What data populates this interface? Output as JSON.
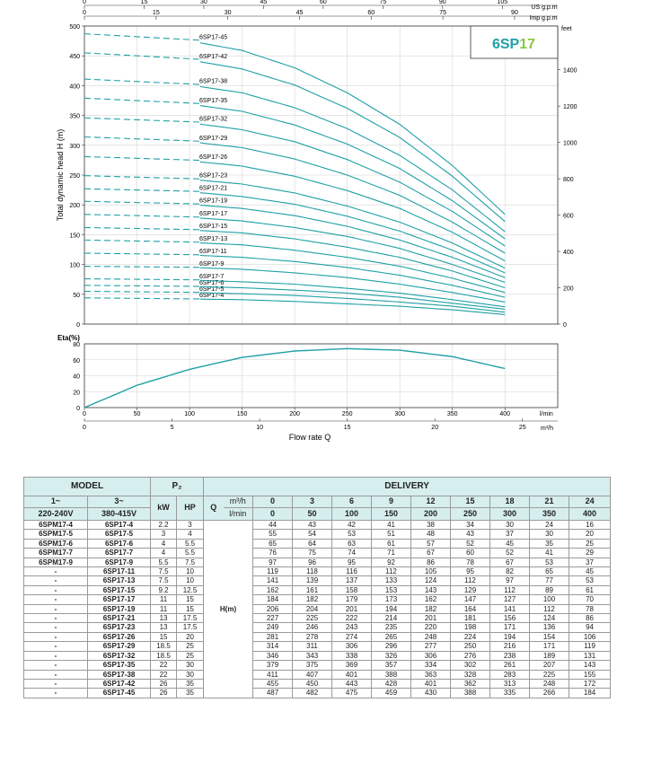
{
  "colors": {
    "curve": "#1fa0a6",
    "badge_blue": "#1fa0a6",
    "badge_green": "#8dc63f",
    "header_bg": "#d7eeee"
  },
  "badge": {
    "prefix": "6SP",
    "suffix": "17"
  },
  "axis_labels": {
    "usgpm": "US g.p.m",
    "impgpm": "Imp g.p.m",
    "feet": "feet",
    "ylabel": "Total dynamic head H (m)",
    "eta": "Eta(%)",
    "lmin": "l/min",
    "m3h": "m³/h",
    "flow": "Flow rate  Q"
  },
  "chart_data": [
    {
      "type": "line",
      "ylabel": "Total dynamic head H (m)",
      "xlabel": "Flow rate Q",
      "x_lmin": [
        0,
        50,
        100,
        150,
        200,
        250,
        300,
        350,
        400
      ],
      "xlim": [
        0,
        450
      ],
      "ylim": [
        0,
        500
      ],
      "yticks": [
        0,
        50,
        100,
        150,
        200,
        250,
        300,
        350,
        400,
        450,
        500
      ],
      "xticks_lmin": [
        0,
        50,
        100,
        150,
        200,
        250,
        300,
        350,
        400
      ],
      "xticks_m3h": [
        0,
        5,
        10,
        15,
        20,
        25
      ],
      "xticks_usgpm": [
        0,
        15,
        30,
        45,
        60,
        75,
        90,
        105
      ],
      "xticks_impgpm": [
        0,
        15,
        30,
        45,
        60,
        75,
        90
      ],
      "yticks_feet": [
        0,
        200,
        400,
        600,
        800,
        1000,
        1200,
        1400
      ],
      "series": [
        {
          "name": "6SP17-4",
          "values": [
            44,
            43,
            42,
            41,
            38,
            34,
            30,
            24,
            16
          ]
        },
        {
          "name": "6SP17-5",
          "values": [
            55,
            54,
            53,
            51,
            48,
            43,
            37,
            30,
            20
          ]
        },
        {
          "name": "6SP17-6",
          "values": [
            65,
            64,
            63,
            61,
            57,
            52,
            45,
            35,
            25
          ]
        },
        {
          "name": "6SP17-7",
          "values": [
            76,
            75,
            74,
            71,
            67,
            60,
            52,
            41,
            29
          ]
        },
        {
          "name": "6SP17-9",
          "values": [
            97,
            96,
            95,
            92,
            86,
            78,
            67,
            53,
            37
          ]
        },
        {
          "name": "6SP17-11",
          "values": [
            119,
            118,
            116,
            112,
            105,
            95,
            82,
            65,
            45
          ]
        },
        {
          "name": "6SP17-13",
          "values": [
            141,
            139,
            137,
            133,
            124,
            112,
            97,
            77,
            53
          ]
        },
        {
          "name": "6SP17-15",
          "values": [
            162,
            161,
            158,
            153,
            143,
            129,
            112,
            89,
            61
          ]
        },
        {
          "name": "6SP17-17",
          "values": [
            184,
            182,
            179,
            173,
            162,
            147,
            127,
            100,
            70
          ]
        },
        {
          "name": "6SP17-19",
          "values": [
            206,
            204,
            201,
            194,
            182,
            164,
            141,
            112,
            78
          ]
        },
        {
          "name": "6SP17-21",
          "values": [
            227,
            225,
            222,
            214,
            201,
            181,
            156,
            124,
            86
          ]
        },
        {
          "name": "6SP17-23",
          "values": [
            249,
            246,
            243,
            235,
            220,
            198,
            171,
            136,
            94
          ]
        },
        {
          "name": "6SP17-26",
          "values": [
            281,
            278,
            274,
            265,
            248,
            224,
            194,
            154,
            106
          ]
        },
        {
          "name": "6SP17-29",
          "values": [
            314,
            311,
            306,
            296,
            277,
            250,
            216,
            171,
            119
          ]
        },
        {
          "name": "6SP17-32",
          "values": [
            346,
            343,
            338,
            326,
            306,
            276,
            238,
            189,
            131
          ]
        },
        {
          "name": "6SP17-35",
          "values": [
            379,
            375,
            369,
            357,
            334,
            302,
            261,
            207,
            143
          ]
        },
        {
          "name": "6SP17-38",
          "values": [
            411,
            407,
            401,
            388,
            363,
            328,
            283,
            225,
            155
          ]
        },
        {
          "name": "6SP17-42",
          "values": [
            455,
            450,
            443,
            428,
            401,
            362,
            313,
            248,
            172
          ]
        },
        {
          "name": "6SP17-45",
          "values": [
            487,
            482,
            475,
            459,
            430,
            388,
            335,
            266,
            184
          ]
        }
      ]
    },
    {
      "type": "line",
      "ylabel": "Eta(%)",
      "ylim": [
        0,
        80
      ],
      "yticks": [
        0,
        20,
        40,
        60,
        80
      ],
      "x_lmin": [
        0,
        50,
        100,
        150,
        200,
        250,
        300,
        350,
        400
      ],
      "values": [
        0,
        28,
        48,
        63,
        71,
        74,
        72,
        64,
        49
      ]
    }
  ],
  "table": {
    "header": {
      "model": "MODEL",
      "p2": "P₂",
      "delivery": "DELIVERY",
      "col_1ph": "1~",
      "col_1ph_v": "220-240V",
      "col_3ph": "3~",
      "col_3ph_v": "380-415V",
      "kw": "kW",
      "hp": "HP",
      "q": "Q",
      "m3h": "m³/h",
      "lmin": "l/min",
      "m3h_values": [
        "0",
        "3",
        "6",
        "9",
        "12",
        "15",
        "18",
        "21",
        "24"
      ],
      "lmin_values": [
        "0",
        "50",
        "100",
        "150",
        "200",
        "250",
        "300",
        "350",
        "400"
      ],
      "hm": "H(m)"
    },
    "rows": [
      {
        "m1": "6SPM17-4",
        "m3": "6SP17-4",
        "kw": "2.2",
        "hp": "3",
        "h": [
          "44",
          "43",
          "42",
          "41",
          "38",
          "34",
          "30",
          "24",
          "16"
        ]
      },
      {
        "m1": "6SPM17-5",
        "m3": "6SP17-5",
        "kw": "3",
        "hp": "4",
        "h": [
          "55",
          "54",
          "53",
          "51",
          "48",
          "43",
          "37",
          "30",
          "20"
        ]
      },
      {
        "m1": "6SPM17-6",
        "m3": "6SP17-6",
        "kw": "4",
        "hp": "5.5",
        "h": [
          "65",
          "64",
          "63",
          "61",
          "57",
          "52",
          "45",
          "35",
          "25"
        ]
      },
      {
        "m1": "6SPM17-7",
        "m3": "6SP17-7",
        "kw": "4",
        "hp": "5.5",
        "h": [
          "76",
          "75",
          "74",
          "71",
          "67",
          "60",
          "52",
          "41",
          "29"
        ]
      },
      {
        "m1": "6SPM17-9",
        "m3": "6SP17-9",
        "kw": "5.5",
        "hp": "7.5",
        "h": [
          "97",
          "96",
          "95",
          "92",
          "86",
          "78",
          "67",
          "53",
          "37"
        ]
      },
      {
        "m1": "-",
        "m3": "6SP17-11",
        "kw": "7.5",
        "hp": "10",
        "h": [
          "119",
          "118",
          "116",
          "112",
          "105",
          "95",
          "82",
          "65",
          "45"
        ]
      },
      {
        "m1": "-",
        "m3": "6SP17-13",
        "kw": "7.5",
        "hp": "10",
        "h": [
          "141",
          "139",
          "137",
          "133",
          "124",
          "112",
          "97",
          "77",
          "53"
        ]
      },
      {
        "m1": "-",
        "m3": "6SP17-15",
        "kw": "9.2",
        "hp": "12.5",
        "h": [
          "162",
          "161",
          "158",
          "153",
          "143",
          "129",
          "112",
          "89",
          "61"
        ]
      },
      {
        "m1": "-",
        "m3": "6SP17-17",
        "kw": "11",
        "hp": "15",
        "h": [
          "184",
          "182",
          "179",
          "173",
          "162",
          "147",
          "127",
          "100",
          "70"
        ]
      },
      {
        "m1": "-",
        "m3": "6SP17-19",
        "kw": "11",
        "hp": "15",
        "h": [
          "206",
          "204",
          "201",
          "194",
          "182",
          "164",
          "141",
          "112",
          "78"
        ]
      },
      {
        "m1": "-",
        "m3": "6SP17-21",
        "kw": "13",
        "hp": "17.5",
        "h": [
          "227",
          "225",
          "222",
          "214",
          "201",
          "181",
          "156",
          "124",
          "86"
        ]
      },
      {
        "m1": "-",
        "m3": "6SP17-23",
        "kw": "13",
        "hp": "17.5",
        "h": [
          "249",
          "246",
          "243",
          "235",
          "220",
          "198",
          "171",
          "136",
          "94"
        ]
      },
      {
        "m1": "-",
        "m3": "6SP17-26",
        "kw": "15",
        "hp": "20",
        "h": [
          "281",
          "278",
          "274",
          "265",
          "248",
          "224",
          "194",
          "154",
          "106"
        ]
      },
      {
        "m1": "-",
        "m3": "6SP17-29",
        "kw": "18.5",
        "hp": "25",
        "h": [
          "314",
          "311",
          "306",
          "296",
          "277",
          "250",
          "216",
          "171",
          "119"
        ]
      },
      {
        "m1": "-",
        "m3": "6SP17-32",
        "kw": "18.5",
        "hp": "25",
        "h": [
          "346",
          "343",
          "338",
          "326",
          "306",
          "276",
          "238",
          "189",
          "131"
        ]
      },
      {
        "m1": "-",
        "m3": "6SP17-35",
        "kw": "22",
        "hp": "30",
        "h": [
          "379",
          "375",
          "369",
          "357",
          "334",
          "302",
          "261",
          "207",
          "143"
        ]
      },
      {
        "m1": "-",
        "m3": "6SP17-38",
        "kw": "22",
        "hp": "30",
        "h": [
          "411",
          "407",
          "401",
          "388",
          "363",
          "328",
          "283",
          "225",
          "155"
        ]
      },
      {
        "m1": "-",
        "m3": "6SP17-42",
        "kw": "26",
        "hp": "35",
        "h": [
          "455",
          "450",
          "443",
          "428",
          "401",
          "362",
          "313",
          "248",
          "172"
        ]
      },
      {
        "m1": "-",
        "m3": "6SP17-45",
        "kw": "26",
        "hp": "35",
        "h": [
          "487",
          "482",
          "475",
          "459",
          "430",
          "388",
          "335",
          "266",
          "184"
        ]
      }
    ]
  }
}
